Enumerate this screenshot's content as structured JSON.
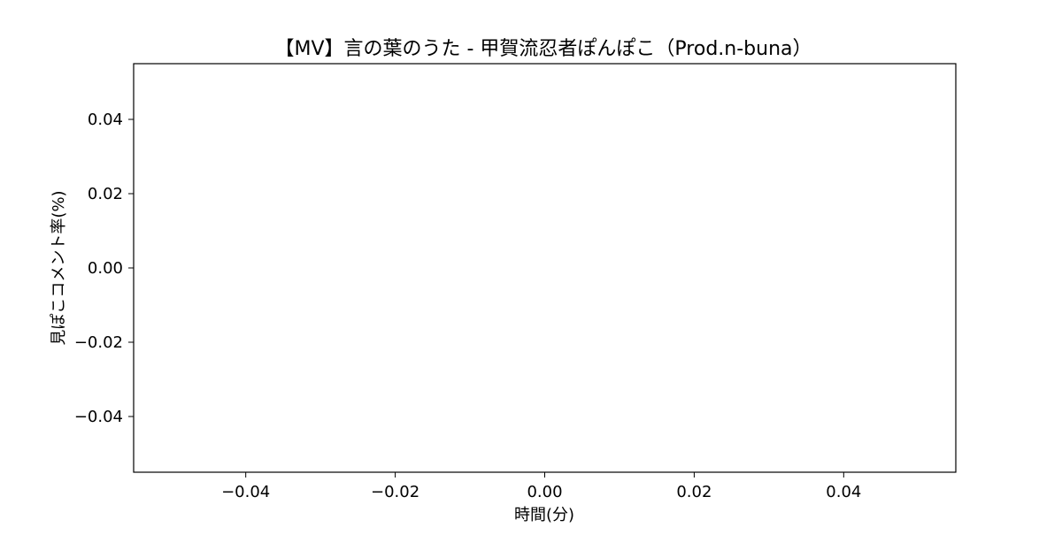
{
  "chart_data": {
    "type": "line",
    "title": "【MV】言の葉のうた - 甲賀流忍者ぽんぽこ（Prod.n-buna）",
    "xlabel": "時間(分)",
    "ylabel": "見ぽこコメント率(%)",
    "xlim": [
      -0.055,
      0.055
    ],
    "ylim": [
      -0.055,
      0.055
    ],
    "xticks": [
      -0.04,
      -0.02,
      0.0,
      0.02,
      0.04
    ],
    "xtick_labels": [
      "−0.04",
      "−0.02",
      "0.00",
      "0.02",
      "0.04"
    ],
    "yticks": [
      -0.04,
      -0.02,
      0.0,
      0.02,
      0.04
    ],
    "ytick_labels": [
      "−0.04",
      "−0.02",
      "0.00",
      "0.02",
      "0.04"
    ],
    "grid": false,
    "series": [
      {
        "x": [],
        "y": []
      }
    ]
  }
}
